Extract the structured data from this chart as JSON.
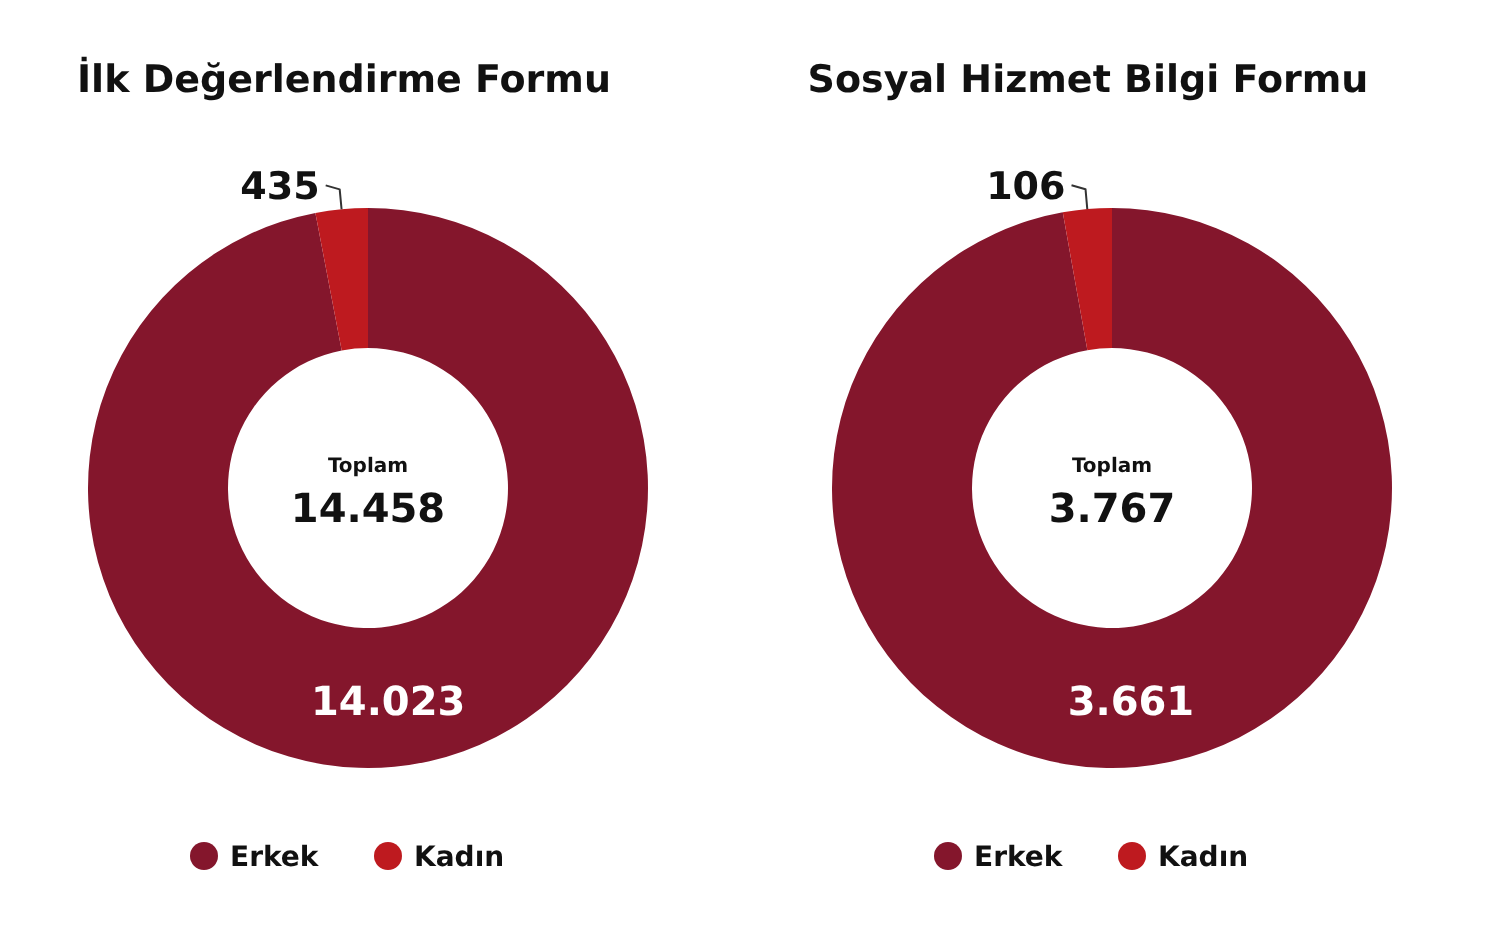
{
  "chart_data": [
    {
      "type": "donut",
      "title": "İlk Değerlendirme Formu",
      "categories": [
        "Erkek",
        "Kadın"
      ],
      "values": [
        14023,
        435
      ],
      "colors": [
        "#84162c",
        "#be1a1f"
      ],
      "value_labels": [
        "14.023",
        "435"
      ],
      "annotations": [
        "Toplam",
        "14.458"
      ],
      "legend": "bottom"
    },
    {
      "type": "donut",
      "title": "Sosyal Hizmet Bilgi Formu",
      "categories": [
        "Erkek",
        "Kadın"
      ],
      "values": [
        3661,
        106
      ],
      "colors": [
        "#84162c",
        "#be1a1f"
      ],
      "value_labels": [
        "3.661",
        "106"
      ],
      "annotations": [
        "Toplam",
        "3.767"
      ],
      "legend": "bottom"
    }
  ]
}
